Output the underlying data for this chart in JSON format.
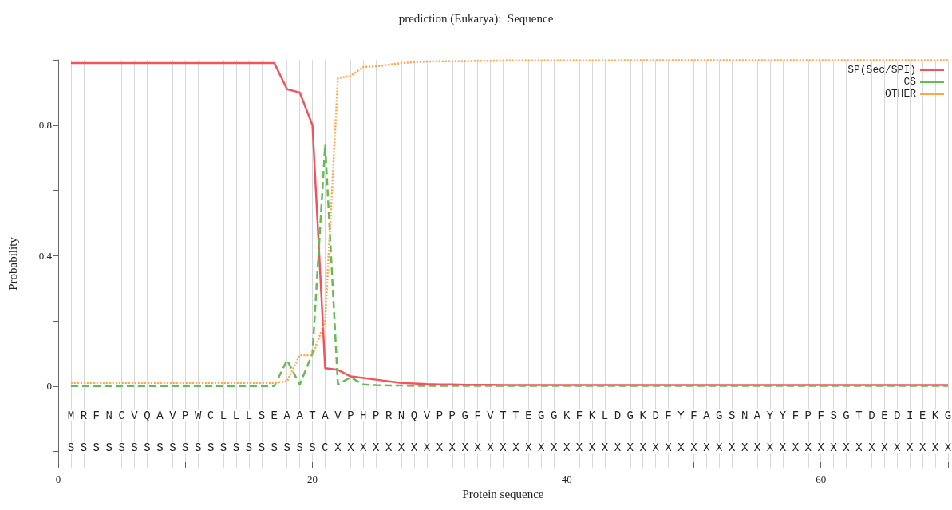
{
  "chart_data": {
    "type": "line",
    "title": "prediction (Eukarya):  Sequence",
    "xlabel": "Protein sequence",
    "ylabel": "Probability",
    "x": [
      1,
      2,
      3,
      4,
      5,
      6,
      7,
      8,
      9,
      10,
      11,
      12,
      13,
      14,
      15,
      16,
      17,
      18,
      19,
      20,
      21,
      22,
      23,
      24,
      25,
      26,
      27,
      28,
      29,
      30,
      31,
      32,
      33,
      34,
      35,
      36,
      37,
      38,
      39,
      40,
      41,
      42,
      43,
      44,
      45,
      46,
      47,
      48,
      49,
      50,
      51,
      52,
      53,
      54,
      55,
      56,
      57,
      58,
      59,
      60,
      61,
      62,
      63,
      64,
      65,
      66,
      67,
      68,
      69,
      70
    ],
    "series": [
      {
        "name": "SP(Sec/SPI)",
        "color": "#f0545c",
        "line_style": "solid",
        "values": [
          0.99,
          0.99,
          0.99,
          0.99,
          0.99,
          0.99,
          0.99,
          0.99,
          0.99,
          0.99,
          0.99,
          0.99,
          0.99,
          0.99,
          0.99,
          0.99,
          0.99,
          0.91,
          0.9,
          0.8,
          0.055,
          0.05,
          0.03,
          0.025,
          0.02,
          0.015,
          0.01,
          0.008,
          0.006,
          0.005,
          0.005,
          0.004,
          0.004,
          0.004,
          0.003,
          0.003,
          0.003,
          0.003,
          0.003,
          0.003,
          0.003,
          0.003,
          0.003,
          0.003,
          0.003,
          0.003,
          0.003,
          0.003,
          0.003,
          0.003,
          0.003,
          0.003,
          0.003,
          0.003,
          0.003,
          0.003,
          0.003,
          0.003,
          0.003,
          0.003,
          0.003,
          0.003,
          0.003,
          0.003,
          0.003,
          0.003,
          0.003,
          0.003,
          0.003,
          0.003
        ]
      },
      {
        "name": "CS",
        "color": "#66bb55",
        "line_style": "dashed",
        "values": [
          0,
          0,
          0,
          0,
          0,
          0,
          0,
          0,
          0,
          0,
          0,
          0,
          0,
          0,
          0,
          0,
          0,
          0.08,
          0.005,
          0.1,
          0.74,
          0.005,
          0.027,
          0.005,
          0.003,
          0.002,
          0.002,
          0.001,
          0.001,
          0.001,
          0.001,
          0.001,
          0.001,
          0.001,
          0.001,
          0.001,
          0.001,
          0.001,
          0.001,
          0.001,
          0.001,
          0.001,
          0.001,
          0.001,
          0.001,
          0.001,
          0.001,
          0.001,
          0.001,
          0.001,
          0.001,
          0.001,
          0.001,
          0.001,
          0.001,
          0.001,
          0.001,
          0.001,
          0.001,
          0.001,
          0.001,
          0.001,
          0.001,
          0.001,
          0.001,
          0.001,
          0.001,
          0.001,
          0.001,
          0.001
        ]
      },
      {
        "name": "OTHER",
        "color": "#ffa64d",
        "line_style": "dotted",
        "values": [
          0.01,
          0.01,
          0.01,
          0.01,
          0.01,
          0.01,
          0.01,
          0.01,
          0.01,
          0.01,
          0.01,
          0.01,
          0.01,
          0.01,
          0.01,
          0.01,
          0.01,
          0.015,
          0.095,
          0.095,
          0.2,
          0.944,
          0.951,
          0.978,
          0.98,
          0.985,
          0.99,
          0.993,
          0.995,
          0.996,
          0.996,
          0.996,
          0.997,
          0.997,
          0.998,
          0.998,
          0.998,
          0.998,
          0.998,
          0.998,
          0.998,
          0.998,
          0.998,
          0.998,
          0.999,
          0.999,
          0.999,
          0.999,
          0.999,
          0.999,
          0.999,
          0.999,
          0.999,
          0.999,
          0.999,
          0.999,
          0.999,
          0.999,
          0.999,
          0.999,
          0.999,
          0.999,
          0.999,
          0.999,
          0.999,
          0.999,
          0.999,
          0.999,
          0.999,
          0.999
        ]
      }
    ],
    "xlim": [
      0,
      70
    ],
    "xticks": [
      0,
      {
        "value": 10,
        "label": null
      },
      20,
      {
        "value": 30,
        "label": null
      },
      40,
      {
        "value": 50,
        "label": null
      },
      60,
      {
        "value": 70,
        "label": null
      }
    ],
    "ylim": [
      -0.25,
      1
    ],
    "yticks": [
      {
        "value": -0.2,
        "label": null
      },
      0,
      {
        "value": 0.2,
        "label": null
      },
      0.4,
      {
        "value": 0.6,
        "label": null
      },
      0.8,
      {
        "value": 1,
        "label": null
      }
    ],
    "grid": "x",
    "legend": "top right",
    "marker": "none",
    "annotations": [
      {
        "text": "M",
        "x": 1,
        "y": -0.09
      },
      {
        "text": "R",
        "x": 2,
        "y": -0.09
      },
      {
        "text": "F",
        "x": 3,
        "y": -0.09
      },
      {
        "text": "N",
        "x": 4,
        "y": -0.09
      },
      {
        "text": "C",
        "x": 5,
        "y": -0.09
      },
      {
        "text": "V",
        "x": 6,
        "y": -0.09
      },
      {
        "text": "Q",
        "x": 7,
        "y": -0.09
      },
      {
        "text": "A",
        "x": 8,
        "y": -0.09
      },
      {
        "text": "V",
        "x": 9,
        "y": -0.09
      },
      {
        "text": "P",
        "x": 10,
        "y": -0.09
      },
      {
        "text": "W",
        "x": 11,
        "y": -0.09
      },
      {
        "text": "C",
        "x": 12,
        "y": -0.09
      },
      {
        "text": "L",
        "x": 13,
        "y": -0.09
      },
      {
        "text": "L",
        "x": 14,
        "y": -0.09
      },
      {
        "text": "L",
        "x": 15,
        "y": -0.09
      },
      {
        "text": "S",
        "x": 16,
        "y": -0.09
      },
      {
        "text": "E",
        "x": 17,
        "y": -0.09
      },
      {
        "text": "A",
        "x": 18,
        "y": -0.09
      },
      {
        "text": "A",
        "x": 19,
        "y": -0.09
      },
      {
        "text": "T",
        "x": 20,
        "y": -0.09
      },
      {
        "text": "A",
        "x": 21,
        "y": -0.09
      },
      {
        "text": "V",
        "x": 22,
        "y": -0.09
      },
      {
        "text": "P",
        "x": 23,
        "y": -0.09
      },
      {
        "text": "H",
        "x": 24,
        "y": -0.09
      },
      {
        "text": "P",
        "x": 25,
        "y": -0.09
      },
      {
        "text": "R",
        "x": 26,
        "y": -0.09
      },
      {
        "text": "N",
        "x": 27,
        "y": -0.09
      },
      {
        "text": "Q",
        "x": 28,
        "y": -0.09
      },
      {
        "text": "V",
        "x": 29,
        "y": -0.09
      },
      {
        "text": "P",
        "x": 30,
        "y": -0.09
      },
      {
        "text": "P",
        "x": 31,
        "y": -0.09
      },
      {
        "text": "G",
        "x": 32,
        "y": -0.09
      },
      {
        "text": "F",
        "x": 33,
        "y": -0.09
      },
      {
        "text": "V",
        "x": 34,
        "y": -0.09
      },
      {
        "text": "T",
        "x": 35,
        "y": -0.09
      },
      {
        "text": "T",
        "x": 36,
        "y": -0.09
      },
      {
        "text": "E",
        "x": 37,
        "y": -0.09
      },
      {
        "text": "G",
        "x": 38,
        "y": -0.09
      },
      {
        "text": "G",
        "x": 39,
        "y": -0.09
      },
      {
        "text": "K",
        "x": 40,
        "y": -0.09
      },
      {
        "text": "F",
        "x": 41,
        "y": -0.09
      },
      {
        "text": "K",
        "x": 42,
        "y": -0.09
      },
      {
        "text": "L",
        "x": 43,
        "y": -0.09
      },
      {
        "text": "D",
        "x": 44,
        "y": -0.09
      },
      {
        "text": "G",
        "x": 45,
        "y": -0.09
      },
      {
        "text": "K",
        "x": 46,
        "y": -0.09
      },
      {
        "text": "D",
        "x": 47,
        "y": -0.09
      },
      {
        "text": "F",
        "x": 48,
        "y": -0.09
      },
      {
        "text": "Y",
        "x": 49,
        "y": -0.09
      },
      {
        "text": "F",
        "x": 50,
        "y": -0.09
      },
      {
        "text": "A",
        "x": 51,
        "y": -0.09
      },
      {
        "text": "G",
        "x": 52,
        "y": -0.09
      },
      {
        "text": "S",
        "x": 53,
        "y": -0.09
      },
      {
        "text": "N",
        "x": 54,
        "y": -0.09
      },
      {
        "text": "A",
        "x": 55,
        "y": -0.09
      },
      {
        "text": "Y",
        "x": 56,
        "y": -0.09
      },
      {
        "text": "Y",
        "x": 57,
        "y": -0.09
      },
      {
        "text": "F",
        "x": 58,
        "y": -0.09
      },
      {
        "text": "P",
        "x": 59,
        "y": -0.09
      },
      {
        "text": "F",
        "x": 60,
        "y": -0.09
      },
      {
        "text": "S",
        "x": 61,
        "y": -0.09
      },
      {
        "text": "G",
        "x": 62,
        "y": -0.09
      },
      {
        "text": "T",
        "x": 63,
        "y": -0.09
      },
      {
        "text": "D",
        "x": 64,
        "y": -0.09
      },
      {
        "text": "E",
        "x": 65,
        "y": -0.09
      },
      {
        "text": "D",
        "x": 66,
        "y": -0.09
      },
      {
        "text": "I",
        "x": 67,
        "y": -0.09
      },
      {
        "text": "E",
        "x": 68,
        "y": -0.09
      },
      {
        "text": "K",
        "x": 69,
        "y": -0.09
      },
      {
        "text": "G",
        "x": 70,
        "y": -0.09
      },
      {
        "text": "S",
        "x": 1,
        "y": -0.19
      },
      {
        "text": "S",
        "x": 2,
        "y": -0.19
      },
      {
        "text": "S",
        "x": 3,
        "y": -0.19
      },
      {
        "text": "S",
        "x": 4,
        "y": -0.19
      },
      {
        "text": "S",
        "x": 5,
        "y": -0.19
      },
      {
        "text": "S",
        "x": 6,
        "y": -0.19
      },
      {
        "text": "S",
        "x": 7,
        "y": -0.19
      },
      {
        "text": "S",
        "x": 8,
        "y": -0.19
      },
      {
        "text": "S",
        "x": 9,
        "y": -0.19
      },
      {
        "text": "S",
        "x": 10,
        "y": -0.19
      },
      {
        "text": "S",
        "x": 11,
        "y": -0.19
      },
      {
        "text": "S",
        "x": 12,
        "y": -0.19
      },
      {
        "text": "S",
        "x": 13,
        "y": -0.19
      },
      {
        "text": "S",
        "x": 14,
        "y": -0.19
      },
      {
        "text": "S",
        "x": 15,
        "y": -0.19
      },
      {
        "text": "S",
        "x": 16,
        "y": -0.19
      },
      {
        "text": "S",
        "x": 17,
        "y": -0.19
      },
      {
        "text": "S",
        "x": 18,
        "y": -0.19
      },
      {
        "text": "S",
        "x": 19,
        "y": -0.19
      },
      {
        "text": "S",
        "x": 20,
        "y": -0.19
      },
      {
        "text": "C",
        "x": 21,
        "y": -0.19
      },
      {
        "text": "X",
        "x": 22,
        "y": -0.19
      },
      {
        "text": "X",
        "x": 23,
        "y": -0.19
      },
      {
        "text": "X",
        "x": 24,
        "y": -0.19
      },
      {
        "text": "X",
        "x": 25,
        "y": -0.19
      },
      {
        "text": "X",
        "x": 26,
        "y": -0.19
      },
      {
        "text": "X",
        "x": 27,
        "y": -0.19
      },
      {
        "text": "X",
        "x": 28,
        "y": -0.19
      },
      {
        "text": "X",
        "x": 29,
        "y": -0.19
      },
      {
        "text": "X",
        "x": 30,
        "y": -0.19
      },
      {
        "text": "X",
        "x": 31,
        "y": -0.19
      },
      {
        "text": "X",
        "x": 32,
        "y": -0.19
      },
      {
        "text": "X",
        "x": 33,
        "y": -0.19
      },
      {
        "text": "X",
        "x": 34,
        "y": -0.19
      },
      {
        "text": "X",
        "x": 35,
        "y": -0.19
      },
      {
        "text": "X",
        "x": 36,
        "y": -0.19
      },
      {
        "text": "X",
        "x": 37,
        "y": -0.19
      },
      {
        "text": "X",
        "x": 38,
        "y": -0.19
      },
      {
        "text": "X",
        "x": 39,
        "y": -0.19
      },
      {
        "text": "X",
        "x": 40,
        "y": -0.19
      },
      {
        "text": "X",
        "x": 41,
        "y": -0.19
      },
      {
        "text": "X",
        "x": 42,
        "y": -0.19
      },
      {
        "text": "X",
        "x": 43,
        "y": -0.19
      },
      {
        "text": "X",
        "x": 44,
        "y": -0.19
      },
      {
        "text": "X",
        "x": 45,
        "y": -0.19
      },
      {
        "text": "X",
        "x": 46,
        "y": -0.19
      },
      {
        "text": "X",
        "x": 47,
        "y": -0.19
      },
      {
        "text": "X",
        "x": 48,
        "y": -0.19
      },
      {
        "text": "X",
        "x": 49,
        "y": -0.19
      },
      {
        "text": "X",
        "x": 50,
        "y": -0.19
      },
      {
        "text": "X",
        "x": 51,
        "y": -0.19
      },
      {
        "text": "X",
        "x": 52,
        "y": -0.19
      },
      {
        "text": "X",
        "x": 53,
        "y": -0.19
      },
      {
        "text": "X",
        "x": 54,
        "y": -0.19
      },
      {
        "text": "X",
        "x": 55,
        "y": -0.19
      },
      {
        "text": "X",
        "x": 56,
        "y": -0.19
      },
      {
        "text": "X",
        "x": 57,
        "y": -0.19
      },
      {
        "text": "X",
        "x": 58,
        "y": -0.19
      },
      {
        "text": "X",
        "x": 59,
        "y": -0.19
      },
      {
        "text": "X",
        "x": 60,
        "y": -0.19
      },
      {
        "text": "X",
        "x": 61,
        "y": -0.19
      },
      {
        "text": "X",
        "x": 62,
        "y": -0.19
      },
      {
        "text": "X",
        "x": 63,
        "y": -0.19
      },
      {
        "text": "X",
        "x": 64,
        "y": -0.19
      },
      {
        "text": "X",
        "x": 65,
        "y": -0.19
      },
      {
        "text": "X",
        "x": 66,
        "y": -0.19
      },
      {
        "text": "X",
        "x": 67,
        "y": -0.19
      },
      {
        "text": "X",
        "x": 68,
        "y": -0.19
      },
      {
        "text": "X",
        "x": 69,
        "y": -0.19
      },
      {
        "text": "X",
        "x": 70,
        "y": -0.19
      }
    ]
  }
}
